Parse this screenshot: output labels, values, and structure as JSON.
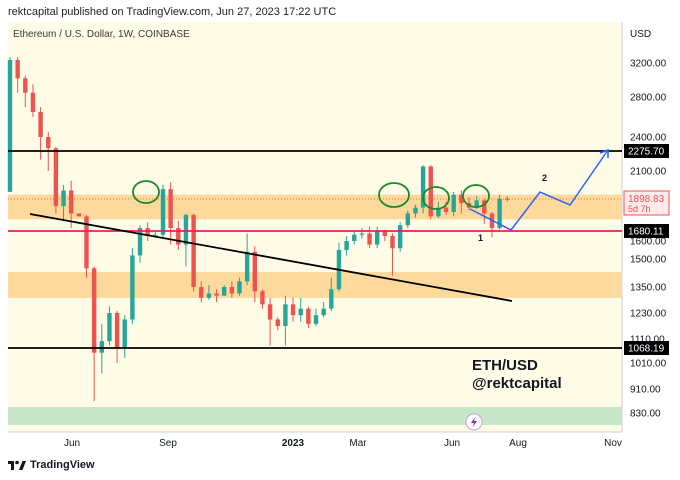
{
  "header": {
    "publisher_line": "rektcapital published on TradingView.com, Jun 27, 2023 17:22 UTC"
  },
  "chart_data": {
    "type": "candlestick",
    "title": "Ethereum / U.S. Dollar, 1W, COINBASE",
    "currency_label": "USD",
    "y_ticks": [
      "3200.00",
      "2800.00",
      "2400.00",
      "2100.00",
      "1600.00",
      "1500.00",
      "1350.00",
      "1230.00",
      "1110.00",
      "1010.00",
      "910.00",
      "830.00"
    ],
    "x_ticks": [
      "Jun",
      "Sep",
      "2023",
      "Mar",
      "Jun",
      "Aug",
      "Nov"
    ],
    "horizontal_levels": [
      {
        "value": 2275.7,
        "label": "2275.70",
        "color": "#000000"
      },
      {
        "value": 1680.11,
        "label": "1680.11",
        "color": "#e91e63"
      },
      {
        "value": 1068.19,
        "label": "1068.19",
        "color": "#000000"
      }
    ],
    "last_price": {
      "value": 1898.83,
      "label": "1898.83",
      "countdown": "5d 7h",
      "color": "#ef5350"
    },
    "zones": [
      {
        "name": "resistance-zone",
        "from": 1760,
        "to": 1930,
        "color": "#fdd99b"
      },
      {
        "name": "mid-zone",
        "from": 1300,
        "to": 1430,
        "color": "#fdd99b"
      },
      {
        "name": "support-zone",
        "from": 790,
        "to": 850,
        "color": "#c8e6c9"
      }
    ],
    "annotations": {
      "label_1": "1",
      "label_2": "2"
    },
    "candles": [
      [
        1950,
        3250,
        3300,
        1950
      ],
      [
        3250,
        3020,
        3300,
        2850
      ],
      [
        3020,
        2850,
        3050,
        2700
      ],
      [
        2850,
        2650,
        2950,
        2600
      ],
      [
        2650,
        2400,
        2700,
        2200
      ],
      [
        2400,
        2300,
        2450,
        2100
      ],
      [
        2300,
        1850,
        2310,
        1800
      ],
      [
        1850,
        1960,
        2000,
        1750
      ],
      [
        1960,
        1800,
        2030,
        1700
      ],
      [
        1800,
        1780,
        1800,
        1780
      ],
      [
        1780,
        1450,
        1790,
        1400
      ],
      [
        1450,
        1050,
        1460,
        870
      ],
      [
        1050,
        1100,
        1180,
        970
      ],
      [
        1100,
        1230,
        1260,
        1080
      ],
      [
        1230,
        1070,
        1240,
        1010
      ],
      [
        1070,
        1200,
        1220,
        1030
      ],
      [
        1200,
        1520,
        1560,
        1180
      ],
      [
        1520,
        1700,
        1720,
        1480
      ],
      [
        1700,
        1650,
        1740,
        1600
      ],
      [
        1650,
        1650,
        1680,
        1630
      ],
      [
        1650,
        1970,
        2000,
        1620
      ],
      [
        1970,
        1700,
        2020,
        1580
      ],
      [
        1700,
        1580,
        1750,
        1550
      ],
      [
        1580,
        1790,
        1800,
        1460
      ],
      [
        1790,
        1350,
        1800,
        1330
      ],
      [
        1350,
        1300,
        1380,
        1280
      ],
      [
        1300,
        1320,
        1360,
        1290
      ],
      [
        1320,
        1310,
        1340,
        1280
      ],
      [
        1310,
        1350,
        1360,
        1310
      ],
      [
        1350,
        1320,
        1380,
        1300
      ],
      [
        1320,
        1380,
        1400,
        1310
      ],
      [
        1380,
        1540,
        1660,
        1360
      ],
      [
        1540,
        1330,
        1570,
        1280
      ],
      [
        1330,
        1270,
        1340,
        1250
      ],
      [
        1270,
        1200,
        1300,
        1080
      ],
      [
        1200,
        1170,
        1210,
        1150
      ],
      [
        1170,
        1270,
        1310,
        1080
      ],
      [
        1270,
        1220,
        1300,
        1190
      ],
      [
        1220,
        1250,
        1300,
        1190
      ],
      [
        1250,
        1180,
        1260,
        1160
      ],
      [
        1180,
        1220,
        1250,
        1170
      ],
      [
        1220,
        1250,
        1280,
        1210
      ],
      [
        1250,
        1340,
        1400,
        1240
      ],
      [
        1340,
        1550,
        1590,
        1330
      ],
      [
        1550,
        1600,
        1640,
        1520
      ],
      [
        1600,
        1650,
        1680,
        1580
      ],
      [
        1650,
        1660,
        1700,
        1620
      ],
      [
        1660,
        1580,
        1710,
        1560
      ],
      [
        1580,
        1680,
        1710,
        1560
      ],
      [
        1680,
        1640,
        1690,
        1600
      ],
      [
        1640,
        1560,
        1660,
        1410
      ],
      [
        1560,
        1720,
        1740,
        1540
      ],
      [
        1720,
        1800,
        1820,
        1700
      ],
      [
        1800,
        1840,
        1860,
        1770
      ],
      [
        1840,
        2140,
        2150,
        1800
      ],
      [
        2140,
        1780,
        2150,
        1760
      ],
      [
        1780,
        1840,
        1880,
        1770
      ],
      [
        1840,
        1810,
        1880,
        1790
      ],
      [
        1810,
        1930,
        1950,
        1780
      ],
      [
        1930,
        1870,
        1960,
        1800
      ],
      [
        1870,
        1840,
        1910,
        1820
      ],
      [
        1840,
        1890,
        1920,
        1830
      ],
      [
        1890,
        1800,
        1900,
        1730
      ],
      [
        1800,
        1700,
        1810,
        1630
      ],
      [
        1700,
        1900,
        1930,
        1690
      ],
      [
        1900,
        1898.83,
        1920,
        1880
      ]
    ]
  },
  "watermark": {
    "line1": "ETH/USD",
    "line2": "@rektcapital"
  },
  "footer": {
    "brand": "TradingView"
  }
}
